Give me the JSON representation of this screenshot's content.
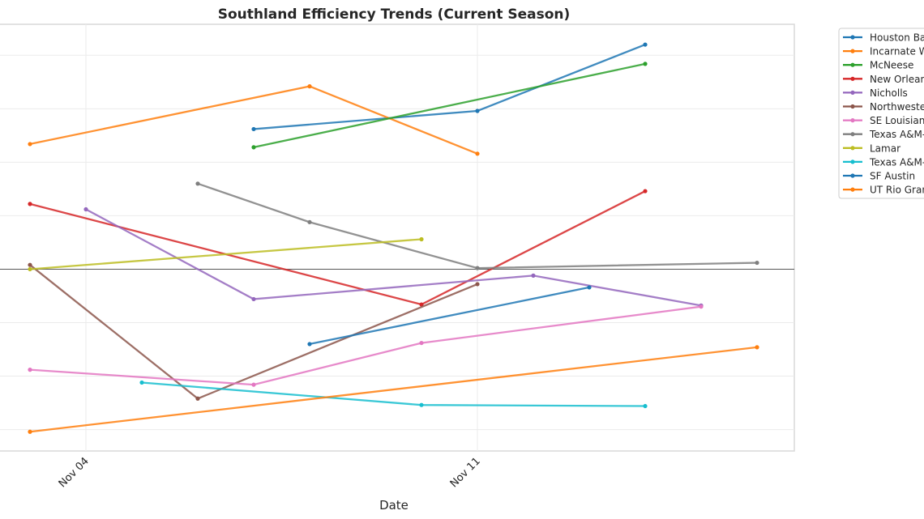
{
  "chart_data": {
    "type": "line",
    "title": "Southland Efficiency Trends (Current Season)",
    "xlabel": "Date",
    "ylabel": "",
    "x_tick_labels": [
      "Nov 04",
      "Nov 11"
    ],
    "x_ticks": [
      "2024-11-04",
      "2024-11-11"
    ],
    "xlim": [
      "2024-11-02",
      "2024-11-16"
    ],
    "ylim": [
      -17.0,
      22.9
    ],
    "y_gridlines": [
      -15,
      -10,
      -5,
      0,
      5,
      10,
      15,
      20
    ],
    "zero_line": 0,
    "grid": true,
    "legend": "outside-right",
    "series": [
      {
        "name": "Houston Ba",
        "color": "#1f77b4",
        "x": [
          "2024-11-07",
          "2024-11-11",
          "2024-11-14"
        ],
        "y": [
          13.1,
          14.8,
          21.0
        ]
      },
      {
        "name": "Incarnate W",
        "color": "#ff7f0e",
        "x": [
          "2024-11-03",
          "2024-11-08",
          "2024-11-11"
        ],
        "y": [
          11.7,
          17.1,
          10.8
        ]
      },
      {
        "name": "McNeese",
        "color": "#2ca02c",
        "x": [
          "2024-11-07",
          "2024-11-14"
        ],
        "y": [
          11.4,
          19.2
        ]
      },
      {
        "name": "New Orlean",
        "color": "#d62728",
        "x": [
          "2024-11-03",
          "2024-11-10",
          "2024-11-14"
        ],
        "y": [
          6.1,
          -3.3,
          7.3
        ]
      },
      {
        "name": "Nicholls",
        "color": "#9467bd",
        "x": [
          "2024-11-04",
          "2024-11-07",
          "2024-11-12",
          "2024-11-15"
        ],
        "y": [
          5.6,
          -2.8,
          -0.6,
          -3.4
        ]
      },
      {
        "name": "Northweste",
        "color": "#8c564b",
        "x": [
          "2024-11-03",
          "2024-11-06",
          "2024-11-11"
        ],
        "y": [
          0.4,
          -12.1,
          -1.4
        ]
      },
      {
        "name": "SE Louisian",
        "color": "#e377c2",
        "x": [
          "2024-11-03",
          "2024-11-07",
          "2024-11-10",
          "2024-11-15"
        ],
        "y": [
          -9.4,
          -10.8,
          -6.9,
          -3.5
        ]
      },
      {
        "name": "Texas A&M-",
        "color": "#7f7f7f",
        "x": [
          "2024-11-06",
          "2024-11-08",
          "2024-11-11",
          "2024-11-16"
        ],
        "y": [
          8.0,
          4.4,
          0.1,
          0.6
        ]
      },
      {
        "name": "Lamar",
        "color": "#bcbd22",
        "x": [
          "2024-11-03",
          "2024-11-10"
        ],
        "y": [
          0.0,
          2.8
        ]
      },
      {
        "name": "Texas A&M-",
        "color": "#17becf",
        "x": [
          "2024-11-05",
          "2024-11-10",
          "2024-11-14"
        ],
        "y": [
          -10.6,
          -12.7,
          -12.8
        ]
      },
      {
        "name": "SF Austin",
        "color": "#1f77b4",
        "x": [
          "2024-11-08",
          "2024-11-13"
        ],
        "y": [
          -7.0,
          -1.7
        ]
      },
      {
        "name": "UT Rio Gran",
        "color": "#ff7f0e",
        "x": [
          "2024-11-03",
          "2024-11-16"
        ],
        "y": [
          -15.2,
          -7.3
        ]
      }
    ]
  }
}
